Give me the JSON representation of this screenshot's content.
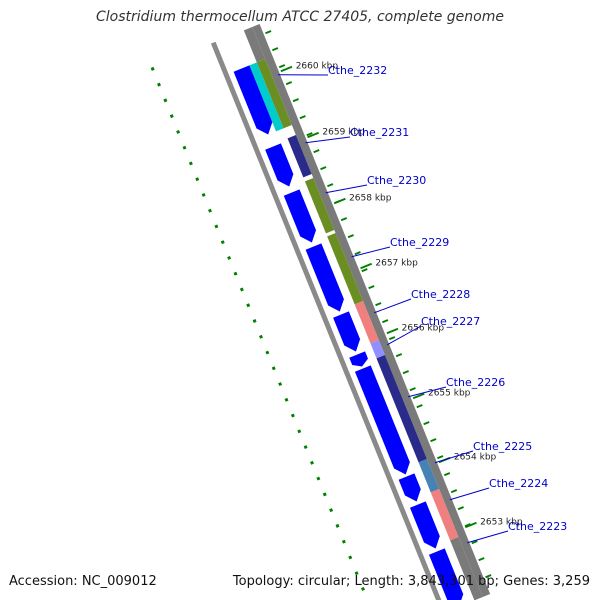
{
  "title": "Clostridium thermocellum ATCC 27405, complete genome",
  "footer": {
    "accession": "Accession: NC_009012",
    "summary": "Topology: circular; Length: 3,843,301 bp; Genes: 3,259"
  },
  "ticks": [
    {
      "label": "2660 kbp"
    },
    {
      "label": "2659 kbp"
    },
    {
      "label": "2658 kbp"
    },
    {
      "label": "2657 kbp"
    },
    {
      "label": "2656 kbp"
    },
    {
      "label": "2655 kbp"
    },
    {
      "label": "2654 kbp"
    },
    {
      "label": "2653 kbp"
    }
  ],
  "genes": [
    {
      "label": "Cthe_2232"
    },
    {
      "label": "Cthe_2231"
    },
    {
      "label": "Cthe_2230"
    },
    {
      "label": "Cthe_2229"
    },
    {
      "label": "Cthe_2228"
    },
    {
      "label": "Cthe_2227"
    },
    {
      "label": "Cthe_2226"
    },
    {
      "label": "Cthe_2225"
    },
    {
      "label": "Cthe_2224"
    },
    {
      "label": "Cthe_2223"
    }
  ],
  "colors": {
    "cds": "#0000ff",
    "gene": "#2a2a8a",
    "olive": "#6b8e23",
    "cyan": "#00cccc",
    "salmon": "#f08080",
    "steel": "#4682b4",
    "lavender": "#8f8fff",
    "gray": "#7a7a7a",
    "tick": "#008000",
    "label": "#0000cc"
  }
}
